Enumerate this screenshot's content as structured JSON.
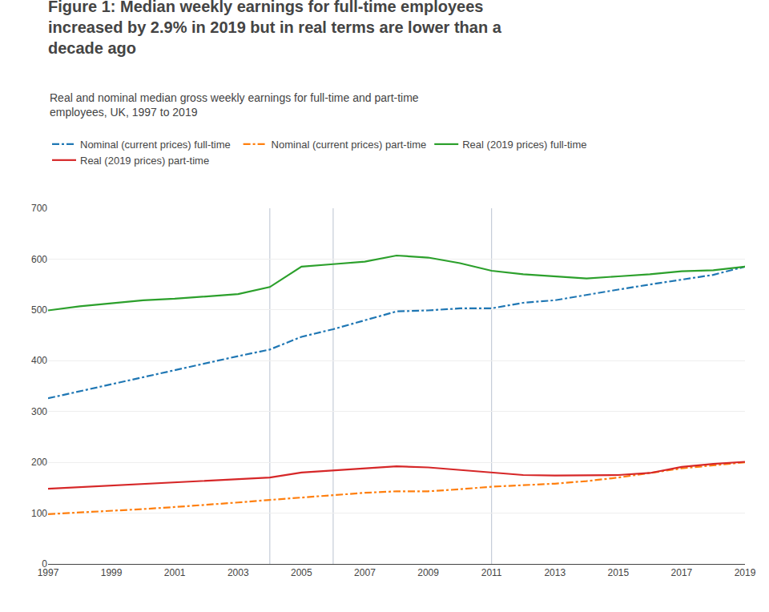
{
  "chart_data": {
    "type": "line",
    "title": "Figure 1: Median weekly earnings for full-time employees increased by 2.9% in 2019 but in real terms are lower than a decade ago",
    "subtitle": "Real and nominal median gross weekly earnings for full-time and part-time employees, UK, 1997 to 2019",
    "x": [
      1997,
      1998,
      1999,
      2000,
      2001,
      2002,
      2003,
      2004,
      2005,
      2006,
      2007,
      2008,
      2009,
      2010,
      2011,
      2012,
      2013,
      2014,
      2015,
      2016,
      2017,
      2018,
      2019
    ],
    "series": [
      {
        "name": "Nominal (current prices) full-time",
        "line_style": "dashdot",
        "values": [
          326,
          340,
          353,
          367,
          382,
          395,
          409,
          422,
          447,
          462,
          479,
          497,
          499,
          503,
          503,
          514,
          519,
          530,
          540,
          550,
          560,
          569,
          585
        ]
      },
      {
        "name": "Nominal (current prices) part-time",
        "line_style": "dashdot",
        "values": [
          98,
          101,
          104,
          108,
          112,
          116,
          121,
          126,
          131,
          136,
          140,
          143,
          143,
          147,
          152,
          155,
          158,
          163,
          170,
          179,
          188,
          194,
          200
        ]
      },
      {
        "name": "Real (2019 prices) full-time",
        "line_style": "solid",
        "values": [
          499,
          507,
          513,
          519,
          522,
          527,
          531,
          545,
          585,
          590,
          595,
          607,
          603,
          592,
          577,
          570,
          566,
          562,
          566,
          570,
          576,
          578,
          585
        ]
      },
      {
        "name": "Real (2019 prices) part-time",
        "line_style": "solid",
        "values": [
          148,
          151,
          154,
          157,
          160,
          163,
          166,
          170,
          180,
          184,
          188,
          192,
          190,
          185,
          179,
          175,
          174,
          174,
          175,
          179,
          191,
          197,
          201
        ]
      }
    ],
    "vlines": {
      "x": [
        2004,
        2006,
        2011
      ],
      "color": "#c5ccd8"
    },
    "xlim": [
      1997,
      2019
    ],
    "xticks": [
      1997,
      1999,
      2001,
      2003,
      2005,
      2007,
      2009,
      2011,
      2013,
      2015,
      2017,
      2019
    ],
    "ylim": [
      0,
      700
    ],
    "yticks": [
      0,
      100,
      200,
      300,
      400,
      500,
      600,
      700
    ],
    "grid": true,
    "legend": "upper left"
  }
}
